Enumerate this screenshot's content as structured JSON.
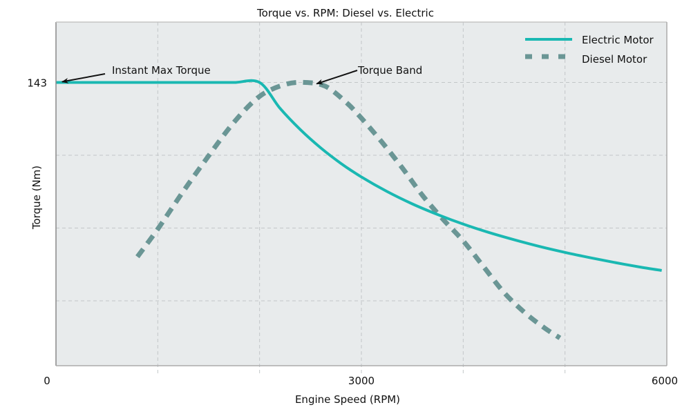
{
  "chart_data": {
    "type": "line",
    "title": "Torque vs. RPM: Diesel vs. Electric",
    "xlabel": "Engine Speed (RPM)",
    "ylabel": "Torque (Nm)",
    "xlim": [
      0,
      6000
    ],
    "ylim": [
      0,
      173.5
    ],
    "xticks": [
      0,
      3000,
      6000
    ],
    "xtick_labels": [
      "0",
      "3000",
      "6000"
    ],
    "yticks": [
      143
    ],
    "ytick_labels": [
      "143"
    ],
    "x_gridlines": [
      1000,
      2000,
      3000,
      4000,
      5000
    ],
    "y_gridlines": [
      143,
      106.25,
      69.5,
      32.75
    ],
    "grid": true,
    "legend_position": "top-right",
    "background_color": "#e8ebec",
    "series": [
      {
        "name": "Electric Motor",
        "style": "solid",
        "color": "#1ab8b2",
        "x": [
          0,
          250,
          500,
          750,
          1000,
          1250,
          1500,
          1750,
          2000,
          2200,
          2400,
          2600,
          2800,
          3000,
          3250,
          3500,
          3750,
          4000,
          4250,
          4500,
          4750,
          5000,
          5250,
          5500,
          5750,
          5950
        ],
        "y": [
          143,
          143,
          143,
          143,
          143,
          143,
          143,
          143,
          143,
          130,
          119.2,
          110,
          102.1,
          95.3,
          88,
          81.7,
          76.3,
          71.5,
          67.3,
          63.6,
          60.2,
          57.2,
          54.5,
          52,
          49.7,
          48.1
        ]
      },
      {
        "name": "Diesel Motor",
        "style": "dashed",
        "color": "#6a9695",
        "x": [
          800,
          1000,
          1250,
          1500,
          1750,
          2000,
          2250,
          2450,
          2650,
          2850,
          3000,
          3200,
          3400,
          3600,
          3800,
          4000,
          4200,
          4400,
          4600,
          4800,
          4950
        ],
        "y": [
          55,
          69,
          88,
          106,
          123,
          136,
          142,
          143,
          141,
          133,
          125,
          113,
          100,
          86,
          74,
          63,
          50,
          37,
          27,
          19,
          14
        ]
      }
    ],
    "annotations": [
      {
        "text": "Instant Max Torque",
        "target_x": 60,
        "target_y": 143
      },
      {
        "text": "Torque Band",
        "target_x": 2560,
        "target_y": 142
      }
    ]
  }
}
